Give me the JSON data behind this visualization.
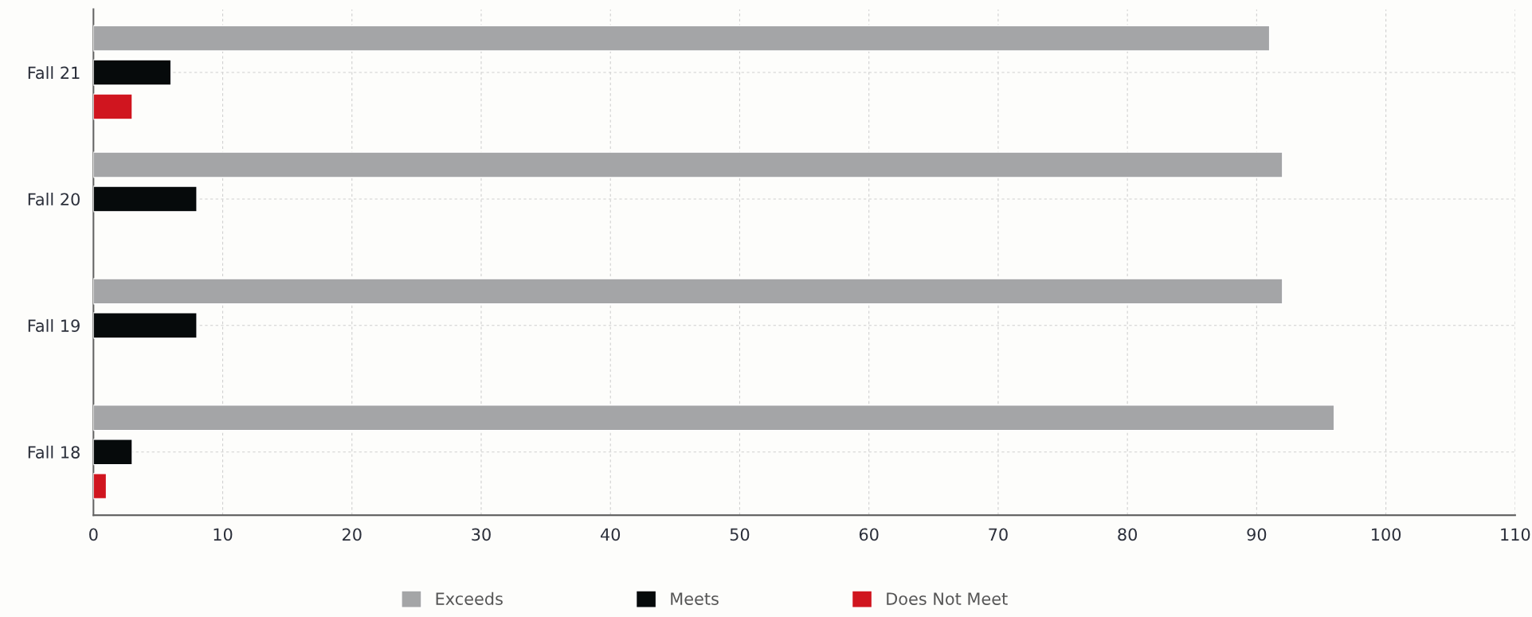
{
  "chart_data": {
    "type": "bar",
    "orientation": "horizontal",
    "categories": [
      "Fall 21",
      "Fall 20",
      "Fall 19",
      "Fall 18"
    ],
    "series": [
      {
        "name": "Exceeds",
        "color": "#a4a5a7",
        "values": [
          91,
          92,
          92,
          96
        ]
      },
      {
        "name": "Meets",
        "color": "#060a0b",
        "values": [
          6,
          8,
          8,
          3
        ]
      },
      {
        "name": "Does Not Meet",
        "color": "#d0151f",
        "values": [
          3,
          null,
          null,
          1
        ]
      }
    ],
    "xlim": [
      0,
      110
    ],
    "xticks": [
      0,
      10,
      20,
      30,
      40,
      50,
      60,
      70,
      80,
      90,
      100,
      110
    ],
    "grid": true,
    "legend": "bottom"
  }
}
